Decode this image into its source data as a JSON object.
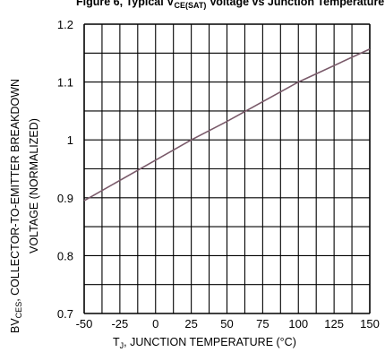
{
  "chart_data": {
    "type": "line",
    "title": {
      "prefix": "Figure 6, Typical V",
      "sub": "CE(SAT)",
      "suffix": " Voltage vs Junction Temperature"
    },
    "xlabel": {
      "prefix": "T",
      "sub": "J",
      "suffix": ", JUNCTION TEMPERATURE (°C)"
    },
    "ylabel_line1": {
      "prefix": "BV",
      "sub": "CES",
      "suffix": ",  COLLECTOR-TO-EMITTER  BREAKDOWN"
    },
    "ylabel_line2": "VOLTAGE  (NORMALIZED)",
    "xlim": [
      -50,
      150
    ],
    "ylim": [
      0.7,
      1.2
    ],
    "x_ticks": [
      -50,
      -25,
      0,
      25,
      50,
      75,
      100,
      125,
      150
    ],
    "x_tick_labels": [
      "-50",
      "-25",
      "0",
      "25",
      "50",
      "75",
      "100",
      "125",
      "150"
    ],
    "y_ticks": [
      0.7,
      0.8,
      0.9,
      1.0,
      1.1,
      1.2
    ],
    "y_tick_labels": [
      "0.7",
      "0.8",
      "0.9",
      "1",
      "1.1",
      "1.2"
    ],
    "grid": true,
    "series": [
      {
        "x": [
          -50,
          0,
          25,
          50,
          100,
          150
        ],
        "y": [
          0.895,
          0.965,
          1.0,
          1.032,
          1.1,
          1.157
        ]
      }
    ],
    "colors": {
      "line": "#7a5a6a",
      "grid": "#000000"
    }
  }
}
